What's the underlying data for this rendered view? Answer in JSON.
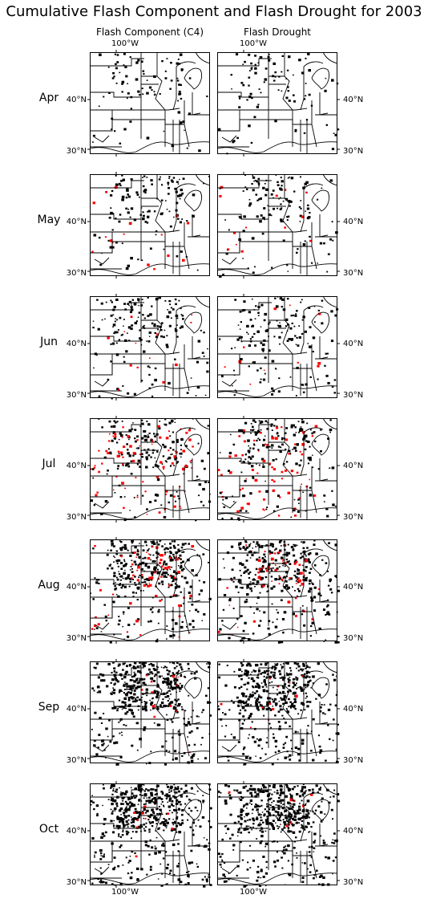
{
  "title": "Cumulative Flash Component and Flash Drought for 2003",
  "columns": [
    "Flash Component (C4)",
    "Flash Drought"
  ],
  "lon_label": "100°W",
  "lat_labels": [
    "40°N",
    "30°N"
  ],
  "months": [
    "Apr",
    "May",
    "Jun",
    "Jul",
    "Aug",
    "Sep",
    "Oct"
  ],
  "colors": {
    "cumulative_event": "#000000",
    "new_event": "#ff0000",
    "background": "#ffffff",
    "boundaries": "#000000"
  },
  "activity": {
    "black": [
      0.1,
      0.14,
      0.18,
      0.22,
      0.4,
      0.52,
      0.58
    ],
    "red": [
      0.0,
      0.06,
      0.05,
      0.3,
      0.25,
      0.05,
      0.04
    ]
  }
}
